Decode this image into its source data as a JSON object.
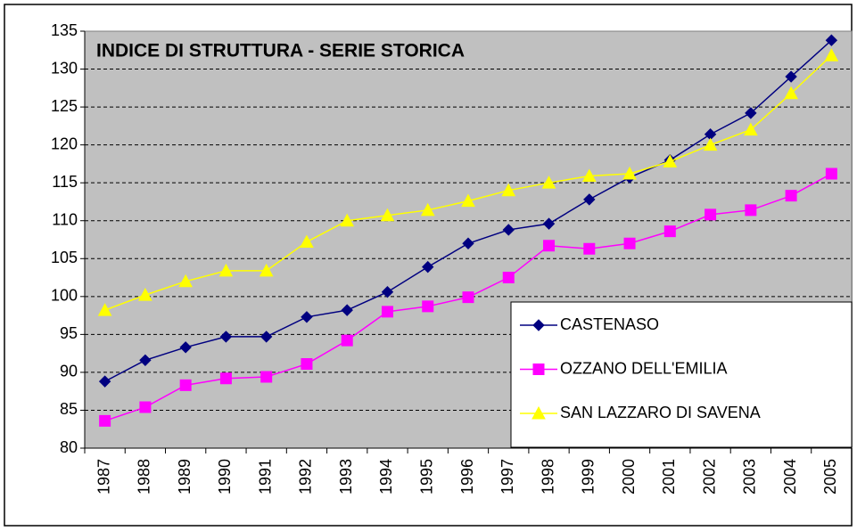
{
  "chart_data": {
    "type": "line",
    "title": "INDICE DI STRUTTURA - SERIE STORICA",
    "categories": [
      "1987",
      "1988",
      "1989",
      "1990",
      "1991",
      "1992",
      "1993",
      "1994",
      "1995",
      "1996",
      "1997",
      "1998",
      "1999",
      "2000",
      "2001",
      "2002",
      "2003",
      "2004",
      "2005"
    ],
    "series": [
      {
        "name": "CASTENASO",
        "color": "#000080",
        "marker": "diamond",
        "values": [
          88.8,
          91.6,
          93.3,
          94.7,
          94.7,
          97.3,
          98.2,
          100.6,
          103.9,
          107.0,
          108.8,
          109.6,
          112.8,
          115.7,
          118.0,
          121.4,
          124.2,
          129.0,
          133.8
        ]
      },
      {
        "name": "OZZANO DELL'EMILIA",
        "color": "#ff00ff",
        "marker": "square",
        "values": [
          83.6,
          85.4,
          88.3,
          89.2,
          89.4,
          91.1,
          94.2,
          98.0,
          98.7,
          99.9,
          102.5,
          106.7,
          106.3,
          107.0,
          108.6,
          110.8,
          111.4,
          113.3,
          116.2
        ]
      },
      {
        "name": "SAN LAZZARO DI SAVENA",
        "color": "#ffff00",
        "marker": "triangle",
        "values": [
          98.2,
          100.2,
          102.0,
          103.4,
          103.4,
          107.2,
          110.0,
          110.7,
          111.4,
          112.6,
          114.0,
          115.0,
          115.9,
          116.2,
          117.8,
          120.0,
          122.0,
          126.8,
          131.8
        ]
      }
    ],
    "ylim": [
      80,
      135
    ],
    "yticks": [
      80,
      85,
      90,
      95,
      100,
      105,
      110,
      115,
      120,
      125,
      130,
      135
    ],
    "grid": true,
    "legend": "lower right",
    "background": "#c0c0c0"
  }
}
